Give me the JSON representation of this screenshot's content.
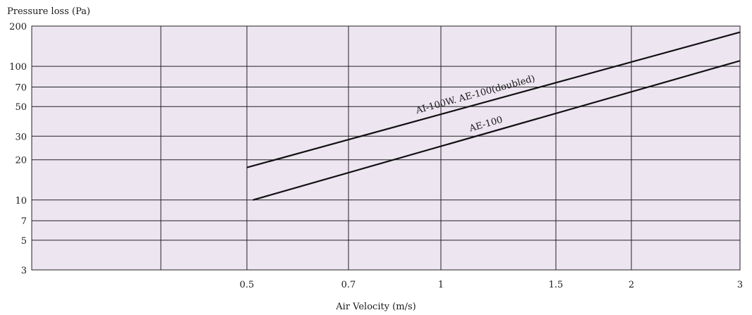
{
  "chart_data": {
    "type": "line",
    "title": "",
    "xlabel": "Air Velocity (m/s)",
    "ylabel": "Pressure loss (Pa)",
    "x_scale": "log",
    "y_scale": "log",
    "x_ticks": [
      0.5,
      0.7,
      1,
      1.5,
      2,
      3
    ],
    "y_ticks": [
      3,
      5,
      7,
      10,
      20,
      30,
      50,
      70,
      100,
      200
    ],
    "xlim": [
      0.5,
      3
    ],
    "ylim": [
      3,
      200
    ],
    "grid": true,
    "background": "#ede6f1",
    "series": [
      {
        "name": "AI-100W. AE-100(doubled)",
        "x": [
          0.5,
          3
        ],
        "y": [
          17.5,
          180
        ],
        "color": "#111111"
      },
      {
        "name": "AE-100",
        "x": [
          0.51,
          3
        ],
        "y": [
          10,
          110
        ],
        "color": "#111111"
      }
    ]
  }
}
